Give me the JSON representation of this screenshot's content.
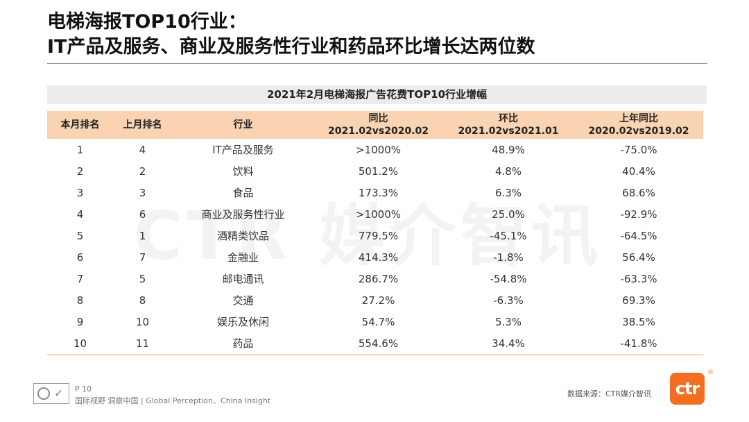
{
  "title": {
    "line1": "电梯海报TOP10行业：",
    "line2": "IT产品及服务、商业及服务性行业和药品环比增长达两位数"
  },
  "watermark": "CTR 媒介智讯",
  "table": {
    "caption": "2021年2月电梯海报广告花费TOP10行业增幅",
    "headers": {
      "rank_this": "本月排名",
      "rank_last": "上月排名",
      "industry": "行业",
      "yoy_line1": "同比",
      "yoy_line2": "2021.02vs2020.02",
      "mom_line1": "环比",
      "mom_line2": "2021.02vs2021.01",
      "prev_yoy_line1": "上年同比",
      "prev_yoy_line2": "2020.02vs2019.02"
    },
    "rows": [
      {
        "rank": "1",
        "last": "4",
        "industry": "IT产品及服务",
        "yoy": ">1000%",
        "mom": "48.9%",
        "prev": "-75.0%"
      },
      {
        "rank": "2",
        "last": "2",
        "industry": "饮料",
        "yoy": "501.2%",
        "mom": "4.8%",
        "prev": "40.4%"
      },
      {
        "rank": "3",
        "last": "3",
        "industry": "食品",
        "yoy": "173.3%",
        "mom": "6.3%",
        "prev": "68.6%"
      },
      {
        "rank": "4",
        "last": "6",
        "industry": "商业及服务性行业",
        "yoy": ">1000%",
        "mom": "25.0%",
        "prev": "-92.9%"
      },
      {
        "rank": "5",
        "last": "1",
        "industry": "酒精类饮品",
        "yoy": "779.5%",
        "mom": "-45.1%",
        "prev": "-64.5%"
      },
      {
        "rank": "6",
        "last": "7",
        "industry": "金融业",
        "yoy": "414.3%",
        "mom": "-1.8%",
        "prev": "56.4%"
      },
      {
        "rank": "7",
        "last": "5",
        "industry": "邮电通讯",
        "yoy": "286.7%",
        "mom": "-54.8%",
        "prev": "-63.3%"
      },
      {
        "rank": "8",
        "last": "8",
        "industry": "交通",
        "yoy": "27.2%",
        "mom": "-6.3%",
        "prev": "69.3%"
      },
      {
        "rank": "9",
        "last": "10",
        "industry": "娱乐及休闲",
        "yoy": "54.7%",
        "mom": "5.3%",
        "prev": "38.5%"
      },
      {
        "rank": "10",
        "last": "11",
        "industry": "药品",
        "yoy": "554.6%",
        "mom": "34.4%",
        "prev": "-41.8%"
      }
    ]
  },
  "footer": {
    "page": "P 10",
    "slogan": "国际视野  洞察中国 | Global Perception、China Insight",
    "source": "数据来源：CTR媒介智讯",
    "logo_text": "ctr",
    "registered": "®"
  },
  "colors": {
    "header_bg": "#f9d3b2",
    "caption_bg": "#ececec",
    "brand_orange": "#f26f21"
  }
}
